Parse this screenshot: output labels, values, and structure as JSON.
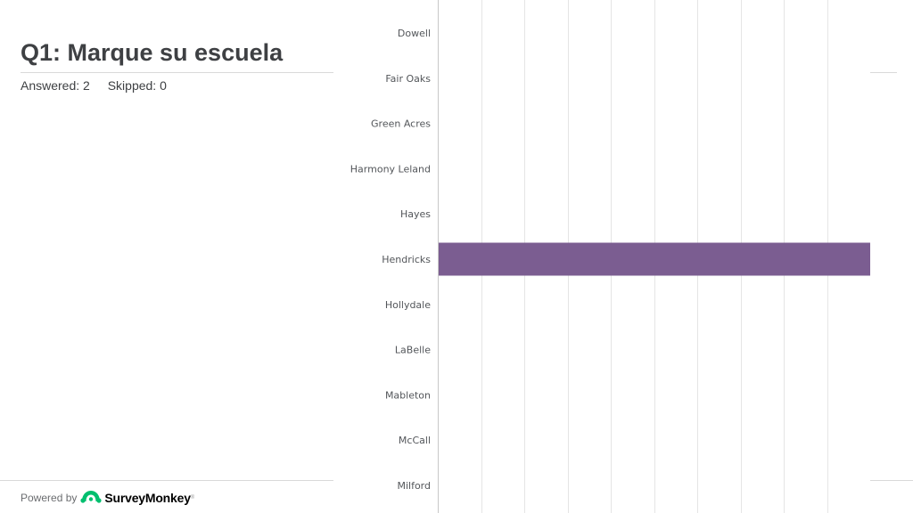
{
  "question": {
    "title": "Q1: Marque su escuela",
    "answered": "Answered: 2",
    "skipped": "Skipped: 0"
  },
  "footer": {
    "powered_by": "Powered by",
    "brand": "SurveyMonkey",
    "trademark": "®"
  },
  "colors": {
    "bar": "#7b5d91",
    "brand": "#00bf6f",
    "grid": "#e5e5e5",
    "tick_label": "#53565a",
    "title": "#3e4043"
  },
  "icons": {
    "brand_logo": "surveymonkey-logo-icon"
  },
  "chart_data": {
    "type": "bar",
    "orientation": "horizontal",
    "categories": [
      "Dowell",
      "Fair Oaks",
      "Green Acres",
      "Harmony Leland",
      "Hayes",
      "Hendricks",
      "Hollydale",
      "LaBelle",
      "Mableton",
      "McCall",
      "Milford"
    ],
    "values": [
      0,
      0,
      0,
      0,
      0,
      100,
      0,
      0,
      0,
      0,
      0
    ],
    "xlim": [
      0,
      100
    ],
    "grid": true,
    "title": "",
    "xlabel": "",
    "ylabel": ""
  }
}
